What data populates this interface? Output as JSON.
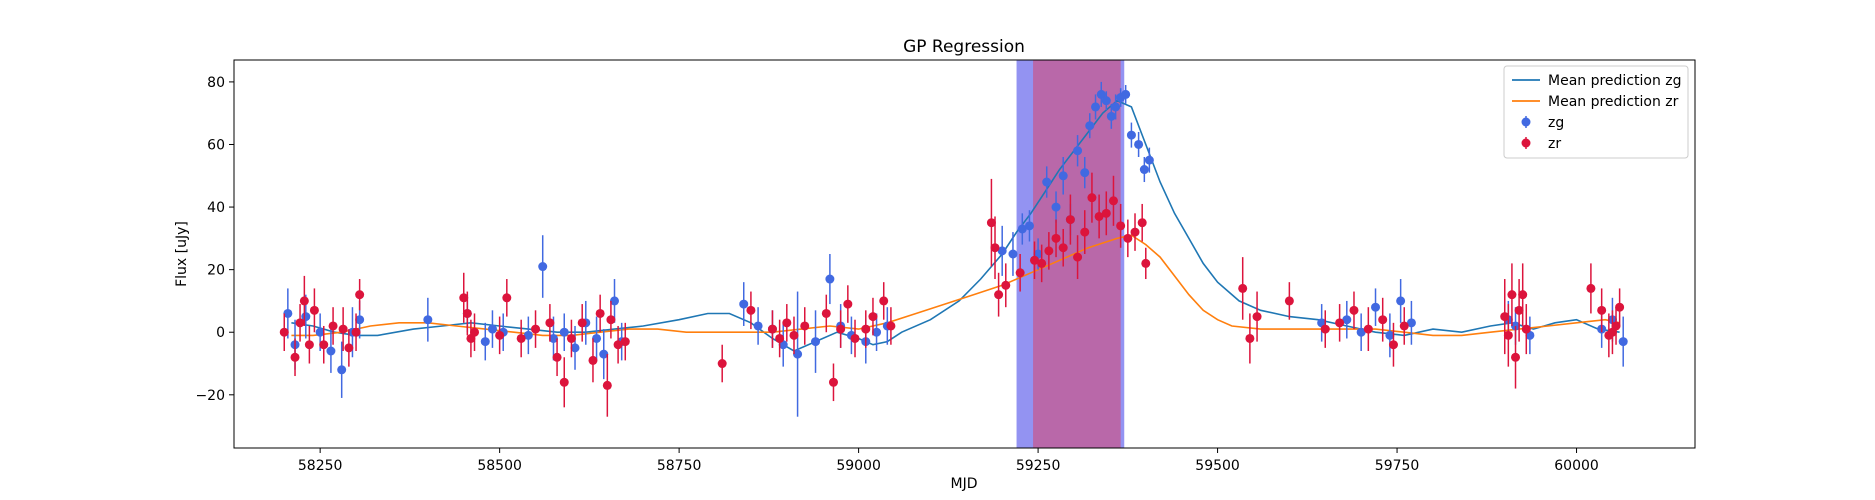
{
  "chart_data": {
    "type": "scatter",
    "title": "GP Regression",
    "xlabel": "MJD",
    "ylabel": "Flux [uJy]",
    "xlim": [
      58130,
      60165
    ],
    "ylim": [
      -37,
      87
    ],
    "xticks": [
      58250,
      58500,
      58750,
      59000,
      59250,
      59500,
      59750,
      60000
    ],
    "yticks": [
      -20,
      0,
      20,
      40,
      60,
      80
    ],
    "grid": false,
    "legend_position": "top-right",
    "colors": {
      "zg_points": "#4169e1",
      "zr_points": "#dc143c",
      "zg_line": "#1f77b4",
      "zr_line": "#ff7f0e",
      "span_blue": "#8080f0",
      "span_purple": "#c0609c"
    },
    "shaded_regions": [
      {
        "x": [
          59220,
          59370
        ],
        "color": "span_blue"
      },
      {
        "x": [
          59243,
          59365
        ],
        "color": "span_purple"
      }
    ],
    "legend": [
      {
        "label": "Mean prediction zg",
        "kind": "line",
        "color": "zg_line"
      },
      {
        "label": "Mean prediction zr",
        "kind": "line",
        "color": "zr_line"
      },
      {
        "label": "zg",
        "kind": "marker",
        "color": "zg_points"
      },
      {
        "label": "zr",
        "kind": "marker",
        "color": "zr_points"
      }
    ],
    "series": [
      {
        "name": "Mean prediction zg",
        "style": "line",
        "color": "zg_line",
        "x": [
          58210,
          58240,
          58270,
          58300,
          58330,
          58380,
          58420,
          58460,
          58500,
          58540,
          58580,
          58620,
          58660,
          58700,
          58750,
          58790,
          58820,
          58850,
          58880,
          58910,
          58940,
          58970,
          59000,
          59020,
          59040,
          59060,
          59100,
          59140,
          59170,
          59200,
          59220,
          59240,
          59260,
          59280,
          59300,
          59320,
          59340,
          59360,
          59380,
          59400,
          59420,
          59440,
          59460,
          59480,
          59500,
          59530,
          59560,
          59600,
          59640,
          59680,
          59720,
          59760,
          59800,
          59840,
          59880,
          59910,
          59940,
          59970,
          60000,
          60030,
          60060
        ],
        "y": [
          3,
          2,
          0,
          -1,
          -1,
          1,
          2,
          3,
          2,
          1,
          0,
          0,
          1,
          2,
          4,
          6,
          6,
          3,
          -2,
          -6,
          -3,
          0,
          -2,
          -4,
          -3,
          0,
          4,
          10,
          17,
          25,
          32,
          38,
          45,
          52,
          58,
          64,
          70,
          74,
          72,
          60,
          48,
          38,
          30,
          22,
          16,
          10,
          7,
          5,
          4,
          2,
          0,
          -1,
          1,
          0,
          2,
          3,
          1,
          3,
          4,
          1,
          0
        ]
      },
      {
        "name": "Mean prediction zr",
        "style": "line",
        "color": "zr_line",
        "x": [
          58210,
          58240,
          58280,
          58320,
          58360,
          58400,
          58440,
          58480,
          58520,
          58560,
          58600,
          58640,
          58680,
          58720,
          58760,
          58800,
          58840,
          58880,
          58920,
          58960,
          59000,
          59040,
          59080,
          59120,
          59160,
          59200,
          59240,
          59280,
          59320,
          59360,
          59380,
          59400,
          59420,
          59440,
          59460,
          59480,
          59500,
          59520,
          59560,
          59600,
          59640,
          59680,
          59720,
          59760,
          59800,
          59840,
          59880,
          59920,
          59960,
          60000,
          60040,
          60060
        ],
        "y": [
          -1,
          -1,
          0,
          2,
          3,
          3,
          2,
          1,
          0,
          -1,
          -1,
          0,
          1,
          1,
          0,
          0,
          0,
          0,
          1,
          2,
          1,
          3,
          6,
          9,
          12,
          15,
          19,
          23,
          27,
          30,
          31,
          28,
          24,
          18,
          12,
          7,
          4,
          2,
          1,
          1,
          1,
          1,
          1,
          0,
          -1,
          -1,
          0,
          1,
          2,
          3,
          4,
          3
        ]
      },
      {
        "name": "zg",
        "style": "errorbar",
        "color": "zg_points",
        "x": [
          58205,
          58215,
          58230,
          58250,
          58265,
          58280,
          58295,
          58305,
          58400,
          58455,
          58480,
          58490,
          58505,
          58540,
          58560,
          58575,
          58590,
          58605,
          58620,
          58635,
          58645,
          58660,
          58670,
          58840,
          58860,
          58880,
          58895,
          58915,
          58940,
          58960,
          58975,
          58990,
          59010,
          59025,
          59040,
          59200,
          59215,
          59228,
          59238,
          59250,
          59262,
          59275,
          59285,
          59295,
          59305,
          59315,
          59322,
          59330,
          59338,
          59345,
          59352,
          59358,
          59365,
          59372,
          59380,
          59390,
          59398,
          59405,
          59645,
          59680,
          59700,
          59720,
          59740,
          59755,
          59770,
          59905,
          59915,
          59935,
          60035,
          60050,
          60065
        ],
        "y": [
          6,
          -4,
          5,
          0,
          -6,
          -12,
          0,
          4,
          4,
          6,
          -3,
          1,
          0,
          -1,
          21,
          -2,
          0,
          -5,
          3,
          -2,
          -7,
          10,
          -3,
          9,
          2,
          1,
          -4,
          -7,
          -3,
          17,
          2,
          -1,
          -3,
          0,
          2,
          26,
          25,
          33,
          34,
          25,
          48,
          40,
          50,
          36,
          58,
          51,
          66,
          72,
          76,
          74,
          69,
          72,
          75,
          76,
          63,
          60,
          52,
          55,
          3,
          4,
          0,
          8,
          -1,
          10,
          3,
          4,
          2,
          -1,
          1,
          4,
          -3
        ],
        "err": [
          8,
          8,
          7,
          6,
          7,
          9,
          8,
          6,
          7,
          6,
          6,
          6,
          6,
          6,
          10,
          7,
          6,
          7,
          7,
          7,
          8,
          7,
          6,
          7,
          6,
          6,
          7,
          20,
          10,
          8,
          7,
          6,
          7,
          6,
          6,
          8,
          7,
          5,
          5,
          5,
          5,
          5,
          6,
          5,
          5,
          5,
          4,
          4,
          4,
          3,
          4,
          4,
          3,
          3,
          4,
          4,
          4,
          4,
          6,
          6,
          6,
          6,
          7,
          7,
          7,
          6,
          6,
          6,
          6,
          7,
          8
        ]
      },
      {
        "name": "zr",
        "style": "errorbar",
        "color": "zr_points",
        "x": [
          58200,
          58215,
          58222,
          58228,
          58235,
          58242,
          58255,
          58268,
          58282,
          58290,
          58300,
          58305,
          58450,
          58455,
          58460,
          58465,
          58500,
          58510,
          58530,
          58550,
          58570,
          58580,
          58590,
          58600,
          58615,
          58630,
          58640,
          58650,
          58655,
          58665,
          58675,
          58810,
          58850,
          58880,
          58890,
          58900,
          58910,
          58925,
          58955,
          58965,
          58975,
          58985,
          58995,
          59010,
          59020,
          59035,
          59045,
          59185,
          59190,
          59195,
          59205,
          59225,
          59245,
          59255,
          59265,
          59275,
          59285,
          59295,
          59305,
          59315,
          59325,
          59335,
          59345,
          59355,
          59365,
          59375,
          59385,
          59395,
          59400,
          59535,
          59545,
          59555,
          59600,
          59650,
          59670,
          59690,
          59710,
          59730,
          59745,
          59760,
          59900,
          59905,
          59910,
          59915,
          59920,
          59925,
          59930,
          60020,
          60035,
          60045,
          60050,
          60055,
          60060
        ],
        "y": [
          0,
          -8,
          3,
          10,
          -4,
          7,
          -4,
          2,
          1,
          -5,
          0,
          12,
          11,
          6,
          -2,
          0,
          -1,
          11,
          -2,
          1,
          3,
          -8,
          -16,
          -2,
          3,
          -9,
          6,
          -17,
          4,
          -4,
          -3,
          -10,
          7,
          1,
          -2,
          3,
          -1,
          2,
          6,
          -16,
          1,
          9,
          -2,
          1,
          5,
          10,
          2,
          35,
          27,
          12,
          15,
          19,
          23,
          22,
          26,
          30,
          27,
          36,
          24,
          32,
          43,
          37,
          38,
          42,
          34,
          30,
          32,
          35,
          22,
          14,
          -2,
          5,
          10,
          1,
          3,
          7,
          1,
          4,
          -4,
          2,
          5,
          -1,
          12,
          -8,
          7,
          12,
          1,
          14,
          7,
          -1,
          0,
          2,
          8
        ],
        "err": [
          6,
          6,
          6,
          8,
          6,
          7,
          6,
          6,
          7,
          6,
          6,
          5,
          8,
          7,
          6,
          6,
          6,
          6,
          6,
          6,
          6,
          6,
          8,
          6,
          6,
          7,
          6,
          10,
          6,
          6,
          6,
          6,
          6,
          6,
          6,
          6,
          6,
          6,
          6,
          6,
          6,
          6,
          6,
          6,
          6,
          6,
          6,
          14,
          10,
          7,
          7,
          6,
          6,
          6,
          6,
          6,
          6,
          8,
          7,
          7,
          8,
          7,
          7,
          8,
          7,
          6,
          6,
          6,
          5,
          10,
          8,
          8,
          6,
          6,
          6,
          6,
          7,
          7,
          7,
          6,
          12,
          10,
          10,
          10,
          10,
          10,
          8,
          8,
          7,
          7,
          7,
          6,
          6
        ]
      }
    ]
  }
}
